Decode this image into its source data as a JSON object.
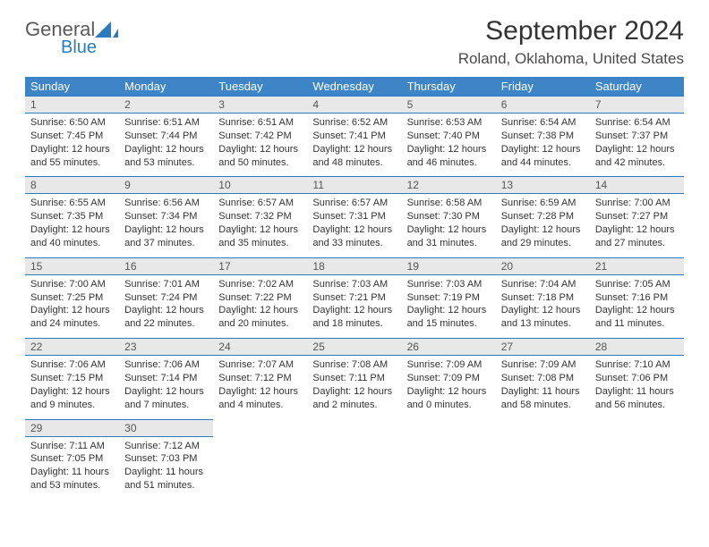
{
  "logo": {
    "general": "General",
    "blue": "Blue"
  },
  "title": "September 2024",
  "location": "Roland, Oklahoma, United States",
  "header_bg": "#3d85c6",
  "accent": "#2b7bbf",
  "numrow_bg": "#e8e8e8",
  "day_names": [
    "Sunday",
    "Monday",
    "Tuesday",
    "Wednesday",
    "Thursday",
    "Friday",
    "Saturday"
  ],
  "weeks": [
    {
      "nums": [
        "1",
        "2",
        "3",
        "4",
        "5",
        "6",
        "7"
      ],
      "cells": [
        {
          "sunrise": "Sunrise: 6:50 AM",
          "sunset": "Sunset: 7:45 PM",
          "day1": "Daylight: 12 hours",
          "day2": "and 55 minutes."
        },
        {
          "sunrise": "Sunrise: 6:51 AM",
          "sunset": "Sunset: 7:44 PM",
          "day1": "Daylight: 12 hours",
          "day2": "and 53 minutes."
        },
        {
          "sunrise": "Sunrise: 6:51 AM",
          "sunset": "Sunset: 7:42 PM",
          "day1": "Daylight: 12 hours",
          "day2": "and 50 minutes."
        },
        {
          "sunrise": "Sunrise: 6:52 AM",
          "sunset": "Sunset: 7:41 PM",
          "day1": "Daylight: 12 hours",
          "day2": "and 48 minutes."
        },
        {
          "sunrise": "Sunrise: 6:53 AM",
          "sunset": "Sunset: 7:40 PM",
          "day1": "Daylight: 12 hours",
          "day2": "and 46 minutes."
        },
        {
          "sunrise": "Sunrise: 6:54 AM",
          "sunset": "Sunset: 7:38 PM",
          "day1": "Daylight: 12 hours",
          "day2": "and 44 minutes."
        },
        {
          "sunrise": "Sunrise: 6:54 AM",
          "sunset": "Sunset: 7:37 PM",
          "day1": "Daylight: 12 hours",
          "day2": "and 42 minutes."
        }
      ]
    },
    {
      "nums": [
        "8",
        "9",
        "10",
        "11",
        "12",
        "13",
        "14"
      ],
      "cells": [
        {
          "sunrise": "Sunrise: 6:55 AM",
          "sunset": "Sunset: 7:35 PM",
          "day1": "Daylight: 12 hours",
          "day2": "and 40 minutes."
        },
        {
          "sunrise": "Sunrise: 6:56 AM",
          "sunset": "Sunset: 7:34 PM",
          "day1": "Daylight: 12 hours",
          "day2": "and 37 minutes."
        },
        {
          "sunrise": "Sunrise: 6:57 AM",
          "sunset": "Sunset: 7:32 PM",
          "day1": "Daylight: 12 hours",
          "day2": "and 35 minutes."
        },
        {
          "sunrise": "Sunrise: 6:57 AM",
          "sunset": "Sunset: 7:31 PM",
          "day1": "Daylight: 12 hours",
          "day2": "and 33 minutes."
        },
        {
          "sunrise": "Sunrise: 6:58 AM",
          "sunset": "Sunset: 7:30 PM",
          "day1": "Daylight: 12 hours",
          "day2": "and 31 minutes."
        },
        {
          "sunrise": "Sunrise: 6:59 AM",
          "sunset": "Sunset: 7:28 PM",
          "day1": "Daylight: 12 hours",
          "day2": "and 29 minutes."
        },
        {
          "sunrise": "Sunrise: 7:00 AM",
          "sunset": "Sunset: 7:27 PM",
          "day1": "Daylight: 12 hours",
          "day2": "and 27 minutes."
        }
      ]
    },
    {
      "nums": [
        "15",
        "16",
        "17",
        "18",
        "19",
        "20",
        "21"
      ],
      "cells": [
        {
          "sunrise": "Sunrise: 7:00 AM",
          "sunset": "Sunset: 7:25 PM",
          "day1": "Daylight: 12 hours",
          "day2": "and 24 minutes."
        },
        {
          "sunrise": "Sunrise: 7:01 AM",
          "sunset": "Sunset: 7:24 PM",
          "day1": "Daylight: 12 hours",
          "day2": "and 22 minutes."
        },
        {
          "sunrise": "Sunrise: 7:02 AM",
          "sunset": "Sunset: 7:22 PM",
          "day1": "Daylight: 12 hours",
          "day2": "and 20 minutes."
        },
        {
          "sunrise": "Sunrise: 7:03 AM",
          "sunset": "Sunset: 7:21 PM",
          "day1": "Daylight: 12 hours",
          "day2": "and 18 minutes."
        },
        {
          "sunrise": "Sunrise: 7:03 AM",
          "sunset": "Sunset: 7:19 PM",
          "day1": "Daylight: 12 hours",
          "day2": "and 15 minutes."
        },
        {
          "sunrise": "Sunrise: 7:04 AM",
          "sunset": "Sunset: 7:18 PM",
          "day1": "Daylight: 12 hours",
          "day2": "and 13 minutes."
        },
        {
          "sunrise": "Sunrise: 7:05 AM",
          "sunset": "Sunset: 7:16 PM",
          "day1": "Daylight: 12 hours",
          "day2": "and 11 minutes."
        }
      ]
    },
    {
      "nums": [
        "22",
        "23",
        "24",
        "25",
        "26",
        "27",
        "28"
      ],
      "cells": [
        {
          "sunrise": "Sunrise: 7:06 AM",
          "sunset": "Sunset: 7:15 PM",
          "day1": "Daylight: 12 hours",
          "day2": "and 9 minutes."
        },
        {
          "sunrise": "Sunrise: 7:06 AM",
          "sunset": "Sunset: 7:14 PM",
          "day1": "Daylight: 12 hours",
          "day2": "and 7 minutes."
        },
        {
          "sunrise": "Sunrise: 7:07 AM",
          "sunset": "Sunset: 7:12 PM",
          "day1": "Daylight: 12 hours",
          "day2": "and 4 minutes."
        },
        {
          "sunrise": "Sunrise: 7:08 AM",
          "sunset": "Sunset: 7:11 PM",
          "day1": "Daylight: 12 hours",
          "day2": "and 2 minutes."
        },
        {
          "sunrise": "Sunrise: 7:09 AM",
          "sunset": "Sunset: 7:09 PM",
          "day1": "Daylight: 12 hours",
          "day2": "and 0 minutes."
        },
        {
          "sunrise": "Sunrise: 7:09 AM",
          "sunset": "Sunset: 7:08 PM",
          "day1": "Daylight: 11 hours",
          "day2": "and 58 minutes."
        },
        {
          "sunrise": "Sunrise: 7:10 AM",
          "sunset": "Sunset: 7:06 PM",
          "day1": "Daylight: 11 hours",
          "day2": "and 56 minutes."
        }
      ]
    },
    {
      "nums": [
        "29",
        "30",
        "",
        "",
        "",
        "",
        ""
      ],
      "cells": [
        {
          "sunrise": "Sunrise: 7:11 AM",
          "sunset": "Sunset: 7:05 PM",
          "day1": "Daylight: 11 hours",
          "day2": "and 53 minutes."
        },
        {
          "sunrise": "Sunrise: 7:12 AM",
          "sunset": "Sunset: 7:03 PM",
          "day1": "Daylight: 11 hours",
          "day2": "and 51 minutes."
        },
        null,
        null,
        null,
        null,
        null
      ]
    }
  ]
}
